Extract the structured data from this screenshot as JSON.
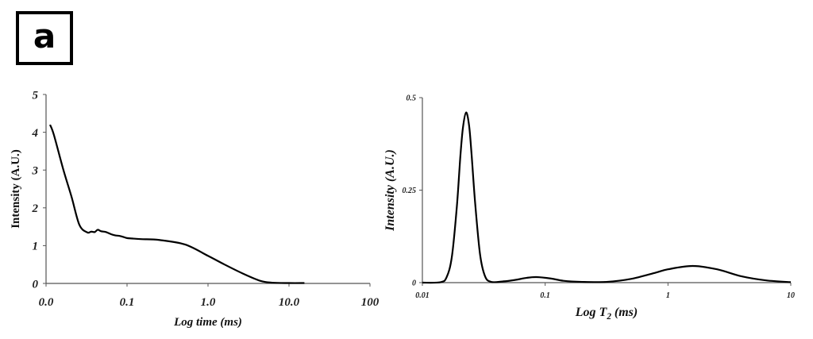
{
  "panel_label": "a",
  "chart_data": [
    {
      "type": "line",
      "xlabel": "Log time (ms)",
      "ylabel": "Intensity (A.U.)",
      "x_scale": "log",
      "xlim": [
        0.01,
        100
      ],
      "ylim": [
        0,
        5
      ],
      "x_ticks": [
        {
          "value": 0.01,
          "label": "0.0"
        },
        {
          "value": 0.1,
          "label": "0.1"
        },
        {
          "value": 1,
          "label": "1.0"
        },
        {
          "value": 10,
          "label": "10.0"
        },
        {
          "value": 100,
          "label": "100"
        }
      ],
      "y_ticks": [
        {
          "value": 0,
          "label": "0"
        },
        {
          "value": 1,
          "label": "1"
        },
        {
          "value": 2,
          "label": "2"
        },
        {
          "value": 3,
          "label": "3"
        },
        {
          "value": 4,
          "label": "4"
        },
        {
          "value": 5,
          "label": "5"
        }
      ],
      "grid": false,
      "color": "#000000",
      "points": [
        [
          0.0112,
          4.2
        ],
        [
          0.0125,
          3.93
        ],
        [
          0.0164,
          3.0
        ],
        [
          0.0206,
          2.3
        ],
        [
          0.0258,
          1.55
        ],
        [
          0.0323,
          1.35
        ],
        [
          0.036,
          1.37
        ],
        [
          0.04,
          1.36
        ],
        [
          0.0434,
          1.42
        ],
        [
          0.048,
          1.38
        ],
        [
          0.055,
          1.36
        ],
        [
          0.064,
          1.3
        ],
        [
          0.072,
          1.27
        ],
        [
          0.08,
          1.26
        ],
        [
          0.09,
          1.23
        ],
        [
          0.1,
          1.2
        ],
        [
          0.115,
          1.19
        ],
        [
          0.13,
          1.18
        ],
        [
          0.157,
          1.17
        ],
        [
          0.25,
          1.15
        ],
        [
          0.52,
          1.03
        ],
        [
          1.0,
          0.73
        ],
        [
          1.6,
          0.5
        ],
        [
          2.7,
          0.26
        ],
        [
          4.4,
          0.07
        ],
        [
          6.2,
          0.02
        ],
        [
          10,
          0.01
        ],
        [
          15.5,
          0.01
        ]
      ]
    },
    {
      "type": "line",
      "xlabel": "Log T2 (ms)",
      "ylabel": "Intensity (A.U.)",
      "x_scale": "log",
      "xlim": [
        0.01,
        10
      ],
      "ylim": [
        0,
        0.5
      ],
      "x_ticks": [
        {
          "value": 0.01,
          "label": "0.01"
        },
        {
          "value": 0.1,
          "label": "0.1"
        },
        {
          "value": 1,
          "label": "1"
        },
        {
          "value": 10,
          "label": "10"
        }
      ],
      "y_ticks": [
        {
          "value": 0,
          "label": "0"
        },
        {
          "value": 0.25,
          "label": "0.25"
        },
        {
          "value": 0.5,
          "label": "0.5"
        }
      ],
      "grid": false,
      "color": "#000000",
      "points": [
        [
          0.01,
          0
        ],
        [
          0.0141,
          0.0013
        ],
        [
          0.0158,
          0.0156
        ],
        [
          0.0174,
          0.071
        ],
        [
          0.0191,
          0.207
        ],
        [
          0.0204,
          0.343
        ],
        [
          0.0214,
          0.419
        ],
        [
          0.0227,
          0.46
        ],
        [
          0.024,
          0.425
        ],
        [
          0.0251,
          0.351
        ],
        [
          0.0269,
          0.215
        ],
        [
          0.0295,
          0.076
        ],
        [
          0.0324,
          0.017
        ],
        [
          0.0363,
          0.002
        ],
        [
          0.0447,
          0.003
        ],
        [
          0.0562,
          0.007
        ],
        [
          0.0708,
          0.013
        ],
        [
          0.0851,
          0.015
        ],
        [
          0.112,
          0.011
        ],
        [
          0.141,
          0.005
        ],
        [
          0.2,
          0.002
        ],
        [
          0.316,
          0.002
        ],
        [
          0.5,
          0.01
        ],
        [
          0.794,
          0.027
        ],
        [
          1.0,
          0.036
        ],
        [
          1.585,
          0.045
        ],
        [
          2.512,
          0.036
        ],
        [
          3.981,
          0.017
        ],
        [
          6.31,
          0.006
        ],
        [
          10,
          0.0013
        ]
      ]
    }
  ]
}
